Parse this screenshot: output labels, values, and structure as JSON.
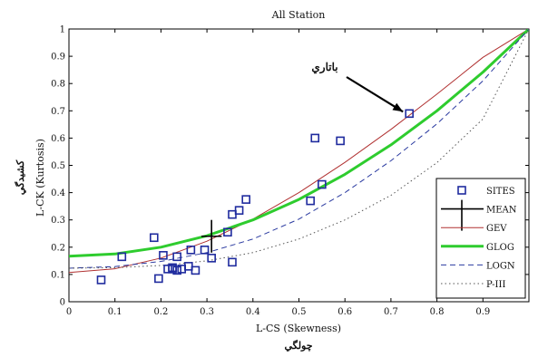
{
  "chart_data": {
    "type": "scatter",
    "title": "All Station",
    "xlabel": "L-CS (Skewness)",
    "xlabel_alt": "چولگي",
    "ylabel": "L-CK (Kurtosis)",
    "ylabel_alt": "کشيدگي",
    "xlim": [
      0,
      1
    ],
    "ylim": [
      0,
      1
    ],
    "x_ticks": [
      "0",
      "0.1",
      "0.2",
      "0.3",
      "0.4",
      "0.5",
      "0.6",
      "0.7",
      "0.8",
      "0.9"
    ],
    "y_ticks": [
      "0",
      "0.1",
      "0.2",
      "0.3",
      "0.4",
      "0.5",
      "0.6",
      "0.7",
      "0.8",
      "0.9",
      "1"
    ],
    "grid": false,
    "legend_position": "bottom-right",
    "annotation": {
      "text": "باتاري",
      "point": [
        0.74,
        0.69
      ]
    },
    "sites": {
      "name": "SITES",
      "color": "#1f2b9e",
      "x": [
        0.07,
        0.115,
        0.185,
        0.195,
        0.205,
        0.215,
        0.225,
        0.225,
        0.235,
        0.235,
        0.245,
        0.26,
        0.265,
        0.275,
        0.295,
        0.31,
        0.345,
        0.355,
        0.355,
        0.37,
        0.385,
        0.525,
        0.535,
        0.55,
        0.59,
        0.74
      ],
      "y": [
        0.08,
        0.165,
        0.235,
        0.085,
        0.17,
        0.12,
        0.12,
        0.125,
        0.115,
        0.165,
        0.12,
        0.13,
        0.19,
        0.115,
        0.19,
        0.16,
        0.255,
        0.145,
        0.32,
        0.335,
        0.375,
        0.37,
        0.6,
        0.43,
        0.59,
        0.69
      ]
    },
    "mean": {
      "name": "MEAN",
      "color": "#000000",
      "x": 0.31,
      "y": 0.24,
      "half_width": 0.022,
      "half_height": 0.06
    },
    "series": [
      {
        "name": "GEV",
        "color": "#b03030",
        "dash": "solid",
        "width": 1,
        "x": [
          0,
          0.1,
          0.2,
          0.3,
          0.4,
          0.5,
          0.6,
          0.7,
          0.8,
          0.9,
          1.0
        ],
        "y": [
          0.107,
          0.121,
          0.16,
          0.222,
          0.303,
          0.4,
          0.511,
          0.632,
          0.761,
          0.896,
          1.0
        ]
      },
      {
        "name": "GLOG",
        "color": "#2ecc2e",
        "dash": "solid",
        "width": 3,
        "x": [
          0,
          0.1,
          0.2,
          0.3,
          0.4,
          0.5,
          0.6,
          0.7,
          0.8,
          0.9,
          1.0
        ],
        "y": [
          0.167,
          0.175,
          0.2,
          0.242,
          0.3,
          0.375,
          0.467,
          0.575,
          0.7,
          0.842,
          1.0
        ]
      },
      {
        "name": "LOGN",
        "color": "#2a3aa0",
        "dash": "dashed",
        "width": 1,
        "x": [
          0,
          0.1,
          0.2,
          0.3,
          0.4,
          0.5,
          0.6,
          0.7,
          0.8,
          0.9,
          1.0
        ],
        "y": [
          0.123,
          0.129,
          0.148,
          0.18,
          0.23,
          0.303,
          0.4,
          0.517,
          0.652,
          0.81,
          1.0
        ]
      },
      {
        "name": "P-III",
        "color": "#555555",
        "dash": "dotted",
        "width": 1,
        "x": [
          0,
          0.1,
          0.2,
          0.3,
          0.4,
          0.5,
          0.6,
          0.7,
          0.8,
          0.9,
          1.0
        ],
        "y": [
          0.123,
          0.125,
          0.133,
          0.15,
          0.18,
          0.23,
          0.3,
          0.39,
          0.51,
          0.67,
          1.0
        ]
      }
    ]
  }
}
